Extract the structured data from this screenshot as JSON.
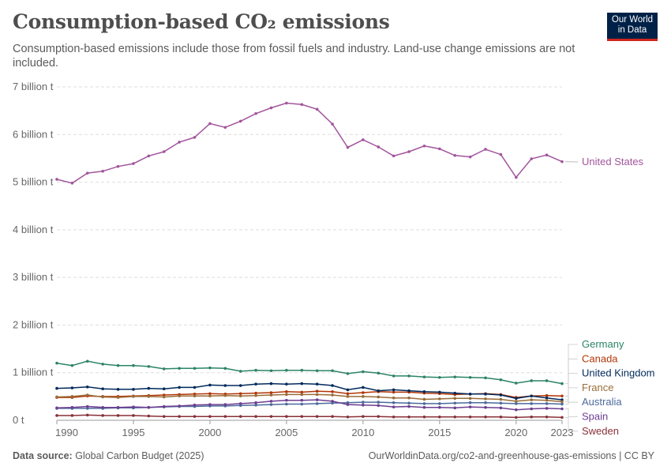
{
  "header": {
    "title": "Consumption-based CO₂ emissions",
    "subtitle": "Consumption-based emissions include those from fossil fuels and industry. Land-use change emissions are not included.",
    "logo_line1": "Our World",
    "logo_line2": "in Data"
  },
  "footer": {
    "source_label": "Data source:",
    "source_value": "Global Carbon Budget (2025)",
    "url": "OurWorldinData.org/co2-and-greenhouse-gas-emissions | CC BY"
  },
  "colors": {
    "accent_navy": "#002147",
    "accent_red": "#ce261e",
    "grid": "#dddddd",
    "axis": "#999999"
  },
  "chart_data": {
    "type": "line",
    "xlim": [
      1990,
      2023
    ],
    "ylim": [
      0,
      7
    ],
    "x_ticks": [
      1990,
      1995,
      2000,
      2005,
      2010,
      2015,
      2020,
      2023
    ],
    "y_ticks": [
      {
        "value": 0,
        "label": "0 t"
      },
      {
        "value": 1,
        "label": "1 billion t"
      },
      {
        "value": 2,
        "label": "2 billion t"
      },
      {
        "value": 3,
        "label": "3 billion t"
      },
      {
        "value": 4,
        "label": "4 billion t"
      },
      {
        "value": 5,
        "label": "5 billion t"
      },
      {
        "value": 6,
        "label": "6 billion t"
      },
      {
        "value": 7,
        "label": "7 billion t"
      }
    ],
    "grid": true,
    "legend": "right, inline labels",
    "unit": "billion t",
    "x": [
      1990,
      1991,
      1992,
      1993,
      1994,
      1995,
      1996,
      1997,
      1998,
      1999,
      2000,
      2001,
      2002,
      2003,
      2004,
      2005,
      2006,
      2007,
      2008,
      2009,
      2010,
      2011,
      2012,
      2013,
      2014,
      2015,
      2016,
      2017,
      2018,
      2019,
      2020,
      2021,
      2022,
      2023
    ],
    "series": [
      {
        "name": "United States",
        "color": "#a2559c",
        "values": [
          5.06,
          4.98,
          5.19,
          5.23,
          5.33,
          5.39,
          5.55,
          5.64,
          5.84,
          5.94,
          6.23,
          6.15,
          6.28,
          6.44,
          6.56,
          6.66,
          6.63,
          6.53,
          6.22,
          5.73,
          5.89,
          5.74,
          5.55,
          5.64,
          5.76,
          5.7,
          5.56,
          5.53,
          5.69,
          5.58,
          5.1,
          5.49,
          5.57,
          5.43
        ]
      },
      {
        "name": "Germany",
        "color": "#2c8465",
        "values": [
          1.2,
          1.15,
          1.24,
          1.18,
          1.15,
          1.15,
          1.13,
          1.08,
          1.09,
          1.09,
          1.1,
          1.09,
          1.03,
          1.05,
          1.04,
          1.05,
          1.05,
          1.04,
          1.04,
          0.98,
          1.02,
          0.99,
          0.93,
          0.93,
          0.91,
          0.9,
          0.91,
          0.9,
          0.89,
          0.85,
          0.78,
          0.83,
          0.83,
          0.77
        ]
      },
      {
        "name": "Canada",
        "color": "#b13507",
        "values": [
          0.48,
          0.48,
          0.51,
          0.5,
          0.5,
          0.51,
          0.52,
          0.53,
          0.54,
          0.55,
          0.56,
          0.55,
          0.56,
          0.57,
          0.58,
          0.6,
          0.59,
          0.61,
          0.6,
          0.56,
          0.58,
          0.6,
          0.59,
          0.59,
          0.57,
          0.56,
          0.54,
          0.55,
          0.56,
          0.54,
          0.48,
          0.51,
          0.52,
          0.51
        ]
      },
      {
        "name": "United Kingdom",
        "color": "#00295b",
        "values": [
          0.67,
          0.68,
          0.7,
          0.66,
          0.65,
          0.65,
          0.67,
          0.66,
          0.69,
          0.69,
          0.74,
          0.73,
          0.73,
          0.76,
          0.77,
          0.76,
          0.77,
          0.76,
          0.73,
          0.64,
          0.69,
          0.62,
          0.64,
          0.62,
          0.6,
          0.59,
          0.57,
          0.55,
          0.55,
          0.53,
          0.46,
          0.51,
          0.47,
          0.43
        ]
      },
      {
        "name": "France",
        "color": "#996d39",
        "values": [
          0.49,
          0.5,
          0.53,
          0.49,
          0.48,
          0.5,
          0.5,
          0.49,
          0.51,
          0.51,
          0.51,
          0.52,
          0.51,
          0.52,
          0.53,
          0.54,
          0.54,
          0.54,
          0.53,
          0.5,
          0.5,
          0.49,
          0.47,
          0.47,
          0.44,
          0.45,
          0.46,
          0.46,
          0.45,
          0.44,
          0.4,
          0.43,
          0.42,
          0.39
        ]
      },
      {
        "name": "Australia",
        "color": "#4c6a9c",
        "values": [
          0.25,
          0.25,
          0.25,
          0.25,
          0.26,
          0.26,
          0.27,
          0.28,
          0.29,
          0.29,
          0.3,
          0.3,
          0.31,
          0.32,
          0.33,
          0.34,
          0.34,
          0.35,
          0.36,
          0.37,
          0.38,
          0.38,
          0.37,
          0.36,
          0.35,
          0.35,
          0.36,
          0.37,
          0.37,
          0.36,
          0.35,
          0.35,
          0.35,
          0.34
        ]
      },
      {
        "name": "Spain",
        "color": "#6d3e91",
        "values": [
          0.26,
          0.27,
          0.29,
          0.27,
          0.27,
          0.28,
          0.27,
          0.29,
          0.3,
          0.32,
          0.33,
          0.33,
          0.35,
          0.37,
          0.4,
          0.42,
          0.42,
          0.43,
          0.4,
          0.33,
          0.32,
          0.31,
          0.28,
          0.29,
          0.27,
          0.27,
          0.26,
          0.28,
          0.27,
          0.26,
          0.22,
          0.24,
          0.25,
          0.24
        ]
      },
      {
        "name": "Sweden",
        "color": "#883039",
        "values": [
          0.1,
          0.1,
          0.11,
          0.1,
          0.1,
          0.1,
          0.09,
          0.08,
          0.08,
          0.08,
          0.08,
          0.08,
          0.08,
          0.08,
          0.08,
          0.08,
          0.08,
          0.08,
          0.08,
          0.07,
          0.08,
          0.08,
          0.07,
          0.07,
          0.07,
          0.07,
          0.07,
          0.07,
          0.07,
          0.07,
          0.06,
          0.07,
          0.07,
          0.06
        ]
      }
    ]
  }
}
